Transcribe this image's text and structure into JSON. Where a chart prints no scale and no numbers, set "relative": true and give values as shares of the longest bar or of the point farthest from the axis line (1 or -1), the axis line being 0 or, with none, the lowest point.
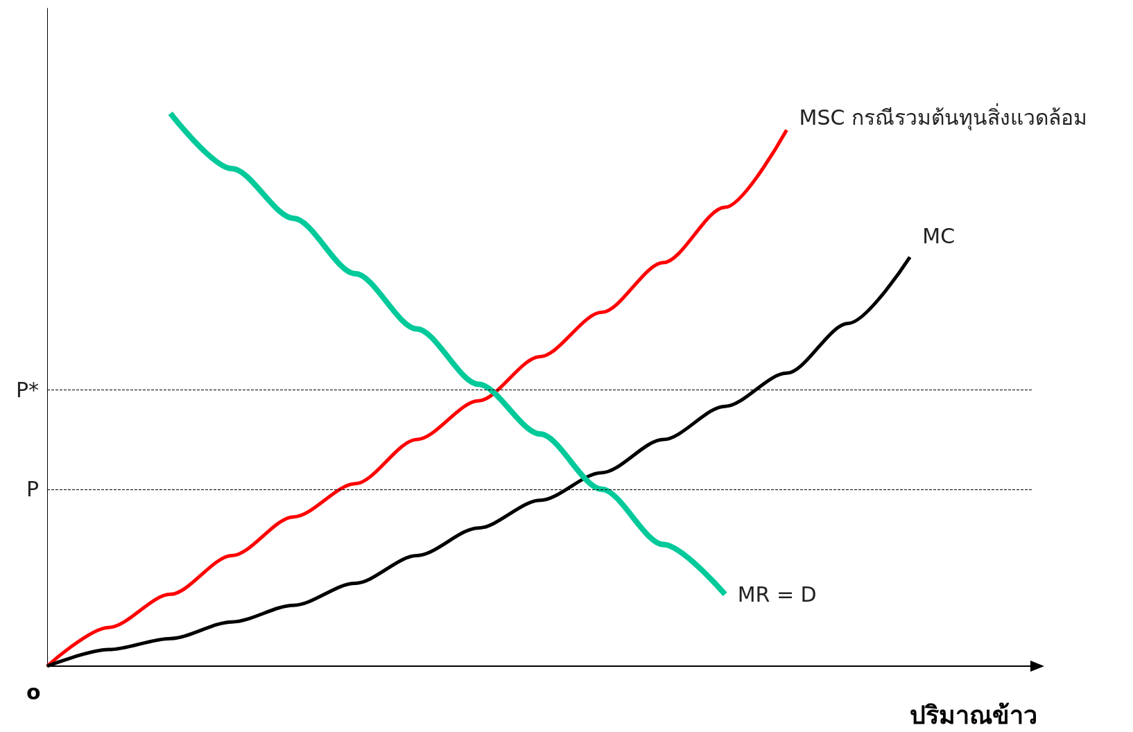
{
  "chart_data": {
    "type": "line",
    "relative": true,
    "xlabel": "ปริมาณข้าว",
    "annotations": [
      "o"
    ],
    "categories": [
      null,
      null,
      null,
      null,
      null,
      null,
      null,
      null,
      null,
      null,
      null,
      null,
      null,
      null,
      null,
      null,
      null
    ],
    "series": [
      {
        "name": "MSC กรณีรวมต้นทุนสิ่งแวดล้อม",
        "color": "#ff0000",
        "values": [
          0,
          0.07,
          0.13,
          0.2,
          0.27,
          0.33,
          0.41,
          0.48,
          0.56,
          0.64,
          0.73,
          0.83,
          0.97,
          null,
          null,
          null,
          null
        ]
      },
      {
        "name": "MC",
        "color": "#000000",
        "values": [
          0,
          0.03,
          0.05,
          0.08,
          0.11,
          0.15,
          0.2,
          0.25,
          0.3,
          0.35,
          0.41,
          0.47,
          0.53,
          0.62,
          0.74,
          null,
          null
        ]
      },
      {
        "name": "MR = D",
        "color": "#00c99a",
        "values": [
          null,
          null,
          1,
          0.9,
          0.81,
          0.71,
          0.61,
          0.51,
          0.42,
          0.32,
          0.22,
          0.13,
          null,
          null,
          null,
          null,
          null
        ]
      }
    ],
    "ref_lines": [
      {
        "axis": "y",
        "value": 0.5,
        "label": "P*",
        "color": "#000000",
        "line_style": "dashed"
      },
      {
        "axis": "y",
        "value": 0.32,
        "label": "P",
        "color": "#000000",
        "line_style": "dashed"
      }
    ],
    "grid": false,
    "legend": false,
    "marker": "none",
    "line_style": "solid"
  }
}
